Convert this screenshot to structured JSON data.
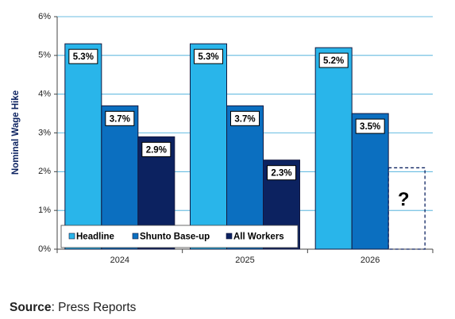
{
  "chart_data": {
    "type": "bar",
    "y_label": "Nominal Wage Hike",
    "categories": [
      "2024",
      "2025",
      "2026"
    ],
    "series": [
      {
        "name": "Headline",
        "color": "#29b5ea",
        "values": [
          5.3,
          5.3,
          5.2
        ],
        "value_labels": [
          "5.3%",
          "5.3%",
          "5.2%"
        ]
      },
      {
        "name": "Shunto Base-up",
        "color": "#0b6fc0",
        "values": [
          3.7,
          3.7,
          3.5
        ],
        "value_labels": [
          "3.7%",
          "3.7%",
          "3.5%"
        ]
      },
      {
        "name": "All Workers",
        "color": "#0c2260",
        "values": [
          2.9,
          2.3,
          null
        ],
        "value_labels": [
          "2.9%",
          "2.3%",
          null
        ]
      }
    ],
    "annotation": {
      "text": "?",
      "value": 2.1
    },
    "ylim": [
      0,
      6
    ],
    "yticks": [
      {
        "value": 0,
        "label": "0%"
      },
      {
        "value": 1,
        "label": "1%"
      },
      {
        "value": 2,
        "label": "2%"
      },
      {
        "value": 3,
        "label": "3%"
      },
      {
        "value": 4,
        "label": "4%"
      },
      {
        "value": 5,
        "label": "5%"
      },
      {
        "value": 6,
        "label": "6%"
      }
    ],
    "grid": true,
    "legend": "lower left",
    "source": {
      "label": "Source",
      "text": ": Press Reports"
    }
  }
}
